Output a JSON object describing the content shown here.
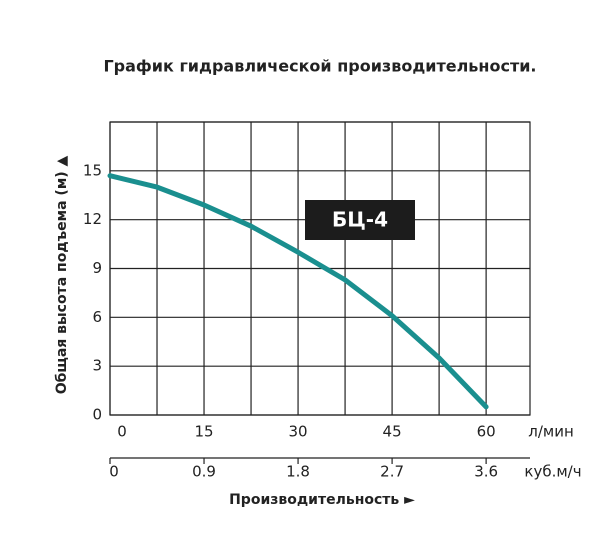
{
  "chart_data": {
    "type": "line",
    "title": "График гидравлической производительности.",
    "x_label": "Производительность ►",
    "y_label": "Общая высота подъема (м) ▲",
    "x_unit": "л/мин",
    "x2_unit": "куб.м/ч",
    "annotation": "БЦ-4",
    "x": [
      0,
      7.5,
      15,
      22.5,
      30,
      37.5,
      45,
      52.5,
      60
    ],
    "series": [
      {
        "name": "БЦ-4",
        "color": "#1a8f8f",
        "values": [
          14.7,
          14.0,
          12.9,
          11.6,
          10.0,
          8.3,
          6.1,
          3.5,
          0.5
        ]
      }
    ],
    "xlim": [
      0,
      67
    ],
    "xticks": [
      0,
      15,
      30,
      45,
      60
    ],
    "x_minor_grid": [
      7.5,
      22.5,
      37.5,
      52.5
    ],
    "x2lim": [
      0,
      4.02
    ],
    "x2ticks": [
      0,
      0.9,
      1.8,
      2.7,
      3.6
    ],
    "ylim": [
      0,
      18
    ],
    "yticks": [
      0,
      3,
      6,
      9,
      12,
      15
    ],
    "y_grid_top": 18,
    "grid": true
  }
}
